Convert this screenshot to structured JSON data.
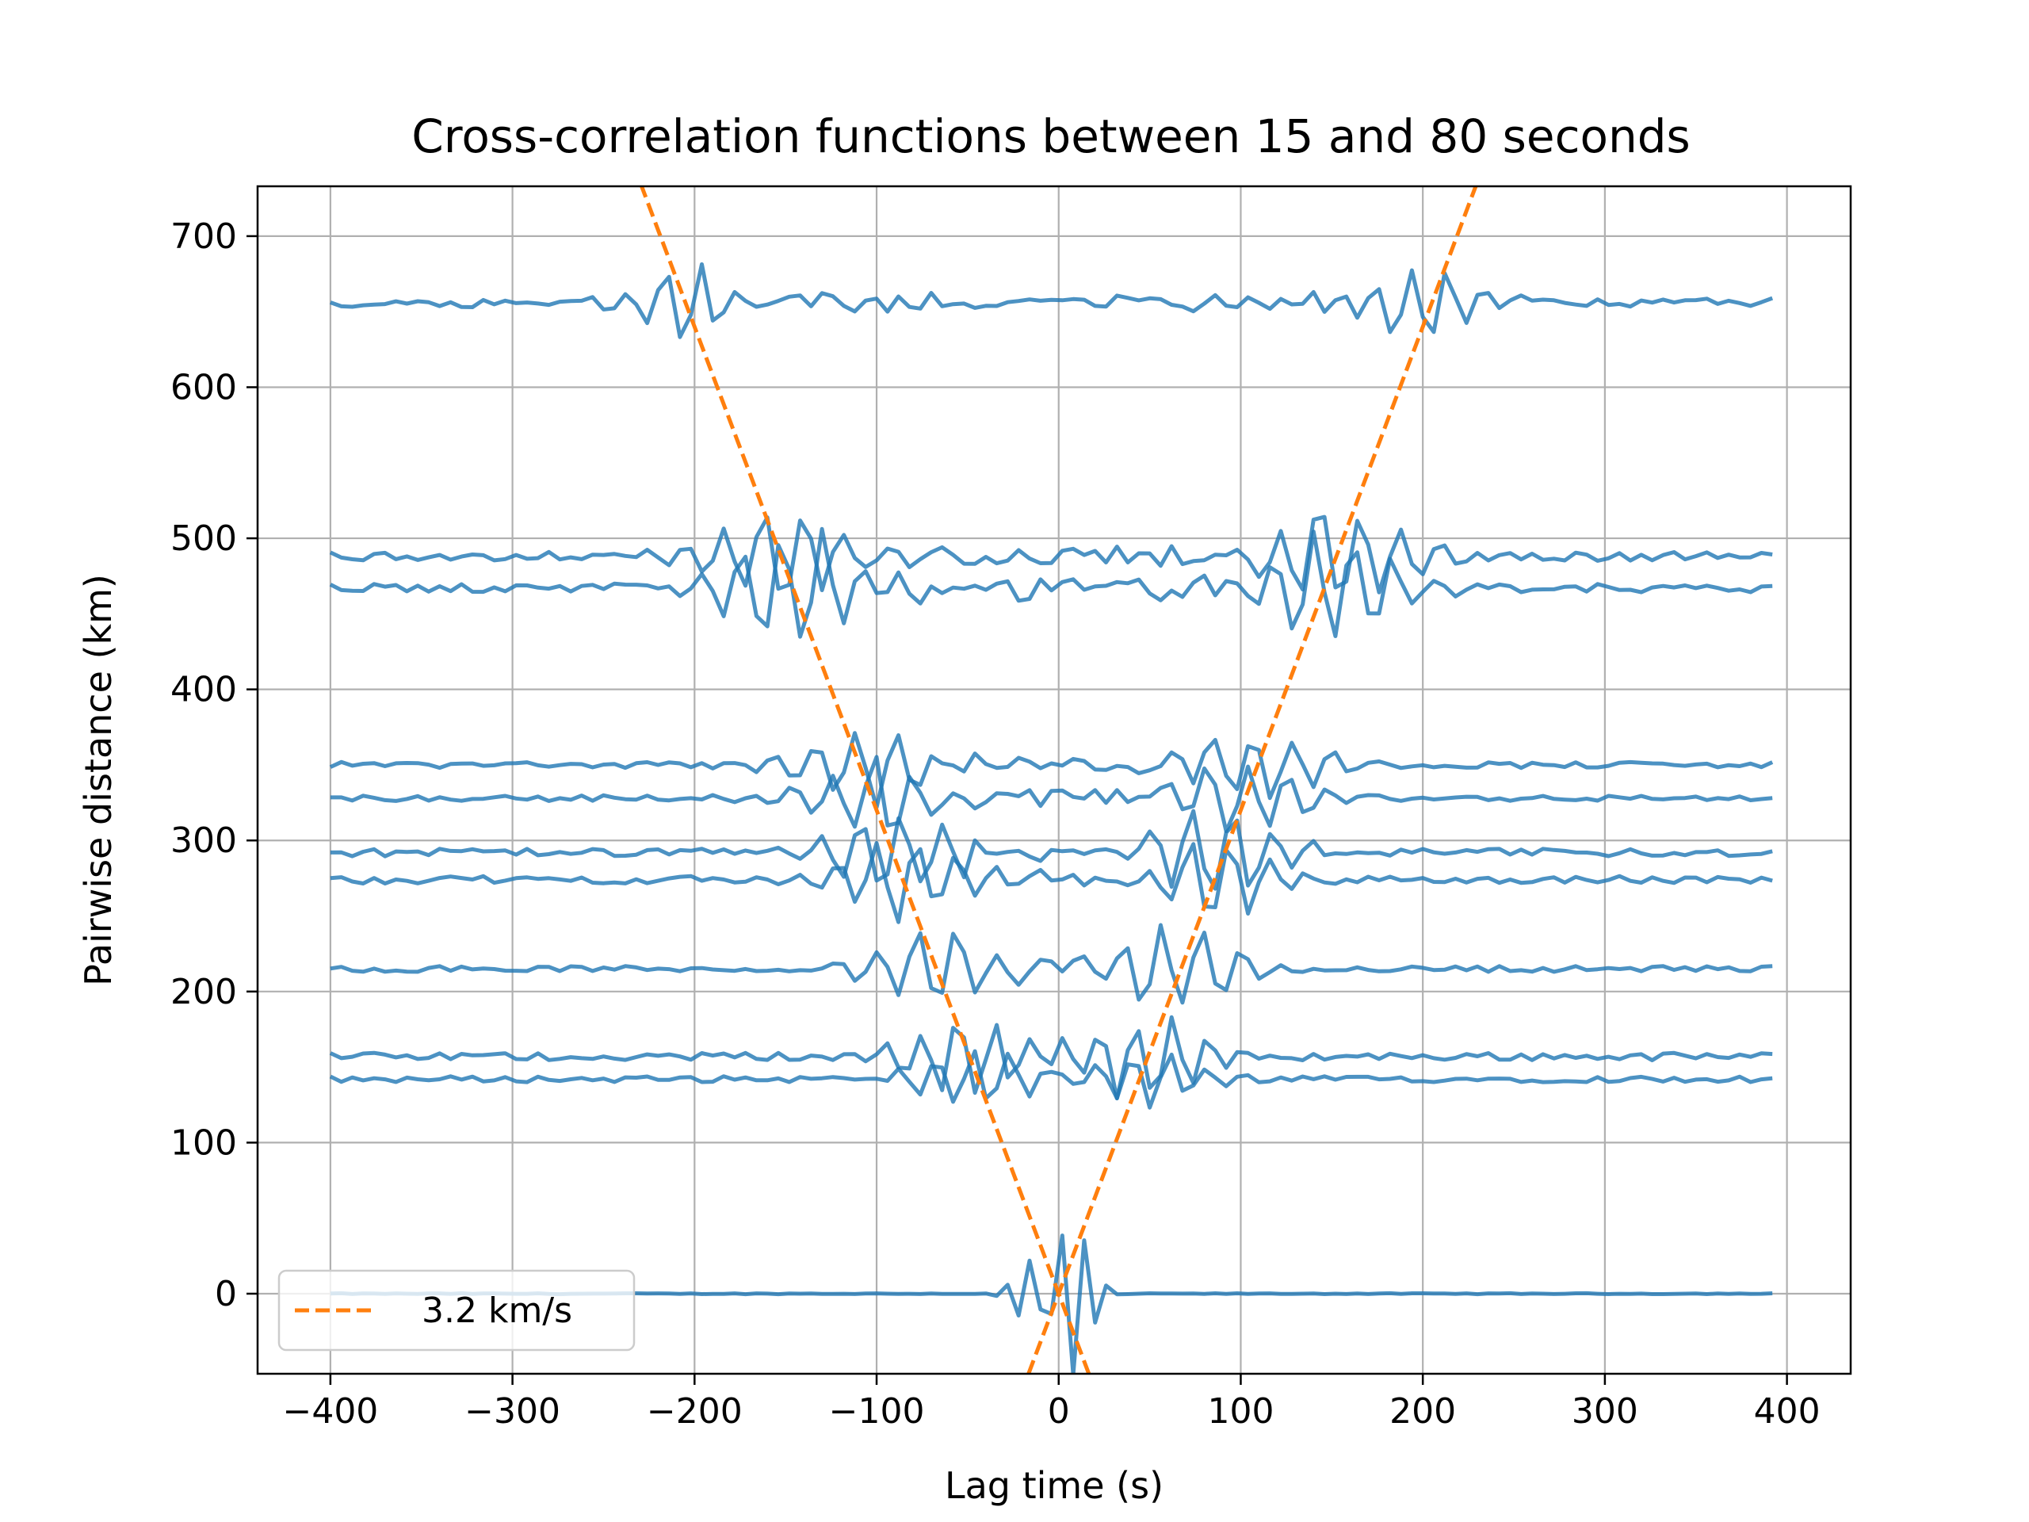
{
  "chart_data": {
    "type": "line",
    "title": "Cross-correlation functions between 15 and 80 seconds",
    "xlabel": "Lag time (s)",
    "ylabel": "Pairwise distance (km)",
    "xlim": [
      -440,
      435
    ],
    "ylim": [
      -53,
      733
    ],
    "x_ticks": [
      -400,
      -300,
      -200,
      -100,
      0,
      100,
      200,
      300,
      400
    ],
    "x_tick_labels": [
      "−400",
      "−300",
      "−200",
      "−100",
      "0",
      "100",
      "200",
      "300",
      "400"
    ],
    "y_ticks": [
      0,
      100,
      200,
      300,
      400,
      500,
      600,
      700
    ],
    "y_tick_labels": [
      "0",
      "100",
      "200",
      "300",
      "400",
      "500",
      "600",
      "700"
    ],
    "grid": true,
    "legend": {
      "placement": "lower-left",
      "entries": [
        "3.2 km/s"
      ]
    },
    "colors": {
      "traces": "#1f77b4",
      "velocity_lines": "#ff7f0e"
    },
    "velocity_km_s": 3.2,
    "lag_range_s": [
      -400,
      396
    ],
    "lag_step_s": 6,
    "traces": [
      {
        "distance": 0,
        "amplitude": 40,
        "arrival_s": 0,
        "duration_s": 18,
        "period_s": 14,
        "noise": 0.3
      },
      {
        "distance": 142,
        "amplitude": 22,
        "arrival_s": 44,
        "duration_s": 38,
        "period_s": 20,
        "noise": 2.0
      },
      {
        "distance": 157,
        "amplitude": 32,
        "arrival_s": 49,
        "duration_s": 40,
        "period_s": 20,
        "noise": 2.5
      },
      {
        "distance": 215,
        "amplitude": 30,
        "arrival_s": 67,
        "duration_s": 40,
        "period_s": 22,
        "noise": 2.0
      },
      {
        "distance": 274,
        "amplitude": 28,
        "arrival_s": 86,
        "duration_s": 40,
        "period_s": 22,
        "noise": 2.5
      },
      {
        "distance": 292,
        "amplitude": 30,
        "arrival_s": 91,
        "duration_s": 40,
        "period_s": 22,
        "noise": 2.5
      },
      {
        "distance": 328,
        "amplitude": 26,
        "arrival_s": 103,
        "duration_s": 40,
        "period_s": 22,
        "noise": 2.0
      },
      {
        "distance": 350,
        "amplitude": 26,
        "arrival_s": 109,
        "duration_s": 40,
        "period_s": 22,
        "noise": 2.0
      },
      {
        "distance": 467,
        "amplitude": 40,
        "arrival_s": 146,
        "duration_s": 45,
        "period_s": 22,
        "noise": 3.0
      },
      {
        "distance": 488,
        "amplitude": 35,
        "arrival_s": 153,
        "duration_s": 45,
        "period_s": 22,
        "noise": 3.0
      },
      {
        "distance": 656,
        "amplitude": 30,
        "arrival_s": 205,
        "duration_s": 30,
        "period_s": 20,
        "noise": 3.0
      }
    ]
  }
}
